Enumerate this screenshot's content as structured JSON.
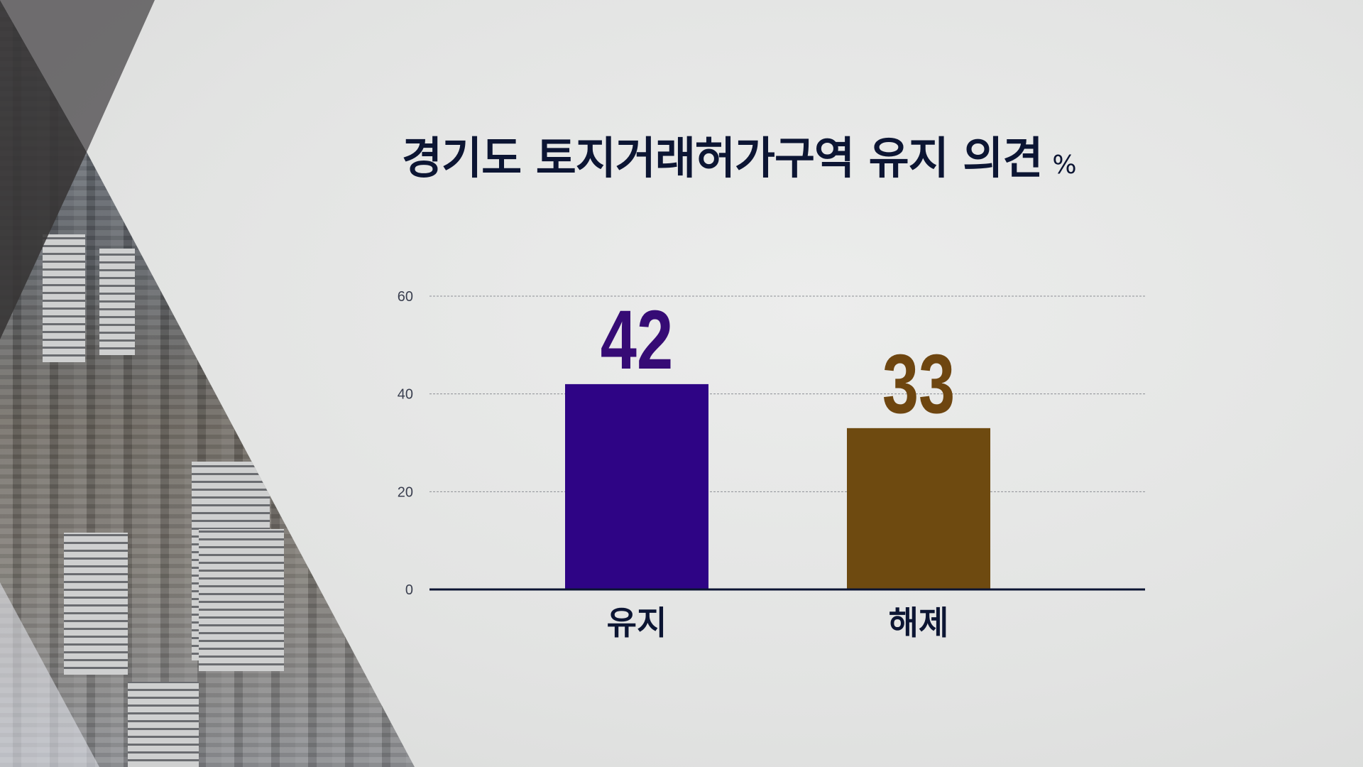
{
  "title": "경기도 토지거래허가구역 유지 의견",
  "unit": "%",
  "chart_data": {
    "type": "bar",
    "title": "경기도 토지거래허가구역 유지 의견",
    "unit": "%",
    "categories": [
      "유지",
      "해제"
    ],
    "values": [
      42,
      33
    ],
    "data_labels": [
      "42",
      "33"
    ],
    "colors": [
      "#2e0485",
      "#6e4a10"
    ],
    "label_colors": [
      "#360b75",
      "#6e4610"
    ],
    "ylim": [
      0,
      60
    ],
    "yticks": [
      0,
      20,
      40,
      60
    ],
    "ytick_labels": [
      "0",
      "20",
      "40",
      "60"
    ],
    "grid": true,
    "xlabel": "",
    "ylabel": ""
  }
}
